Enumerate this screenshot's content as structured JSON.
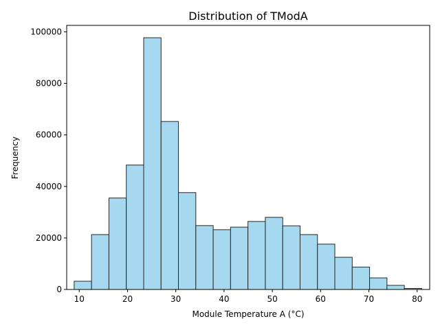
{
  "chart_data": {
    "type": "bar",
    "title": "Distribution of TModA",
    "xlabel": "Module Temperature A (°C)",
    "ylabel": "Frequency",
    "xlim": [
      7.4,
      82.6
    ],
    "ylim": [
      0,
      102500
    ],
    "xticks": [
      10,
      20,
      30,
      40,
      50,
      60,
      70,
      80
    ],
    "yticks": [
      0,
      20000,
      40000,
      60000,
      80000,
      100000
    ],
    "grid": false,
    "bar_color": "#a6d9ef",
    "edge_color": "#262626",
    "bins": [
      {
        "x0": 8.95,
        "x1": 12.55,
        "count": 3200
      },
      {
        "x0": 12.55,
        "x1": 16.15,
        "count": 21300
      },
      {
        "x0": 16.15,
        "x1": 19.75,
        "count": 35500
      },
      {
        "x0": 19.75,
        "x1": 23.35,
        "count": 48300
      },
      {
        "x0": 23.35,
        "x1": 26.95,
        "count": 97700
      },
      {
        "x0": 26.95,
        "x1": 30.55,
        "count": 65200
      },
      {
        "x0": 30.55,
        "x1": 34.15,
        "count": 37600
      },
      {
        "x0": 34.15,
        "x1": 37.75,
        "count": 24800
      },
      {
        "x0": 37.75,
        "x1": 41.35,
        "count": 23200
      },
      {
        "x0": 41.35,
        "x1": 44.95,
        "count": 24200
      },
      {
        "x0": 44.95,
        "x1": 48.55,
        "count": 26400
      },
      {
        "x0": 48.55,
        "x1": 52.15,
        "count": 28000
      },
      {
        "x0": 52.15,
        "x1": 55.75,
        "count": 24700
      },
      {
        "x0": 55.75,
        "x1": 59.35,
        "count": 21300
      },
      {
        "x0": 59.35,
        "x1": 62.95,
        "count": 17600
      },
      {
        "x0": 62.95,
        "x1": 66.55,
        "count": 12500
      },
      {
        "x0": 66.55,
        "x1": 70.15,
        "count": 8700
      },
      {
        "x0": 70.15,
        "x1": 73.75,
        "count": 4500
      },
      {
        "x0": 73.75,
        "x1": 77.35,
        "count": 1600
      },
      {
        "x0": 77.35,
        "x1": 80.95,
        "count": 400
      }
    ]
  }
}
